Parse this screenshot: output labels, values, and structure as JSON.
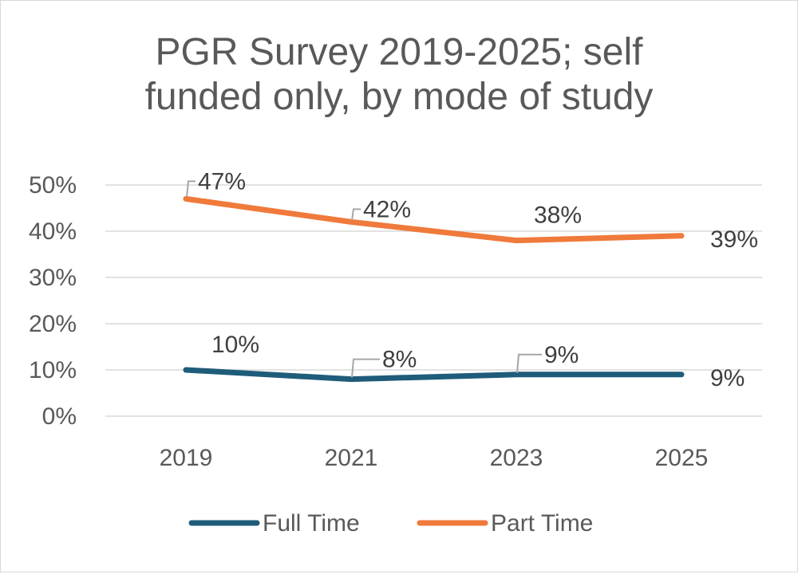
{
  "chart_data": {
    "type": "line",
    "title": "PGR Survey 2019-2025; self funded only, by mode of study",
    "title_lines": [
      "PGR Survey 2019-2025; self",
      "funded only, by mode of study"
    ],
    "categories": [
      "2019",
      "2021",
      "2023",
      "2025"
    ],
    "ylim": [
      0,
      0.5
    ],
    "yticks": [
      "0%",
      "10%",
      "20%",
      "30%",
      "40%",
      "50%"
    ],
    "grid": true,
    "legend_position": "bottom",
    "series": [
      {
        "name": "Full Time",
        "color": "#1f5c7a",
        "values": [
          0.1,
          0.08,
          0.09,
          0.09
        ],
        "labels": [
          "10%",
          "8%",
          "9%",
          "9%"
        ]
      },
      {
        "name": "Part Time",
        "color": "#ef7a3b",
        "values": [
          0.47,
          0.42,
          0.38,
          0.39
        ],
        "labels": [
          "47%",
          "42%",
          "38%",
          "39%"
        ]
      }
    ]
  }
}
